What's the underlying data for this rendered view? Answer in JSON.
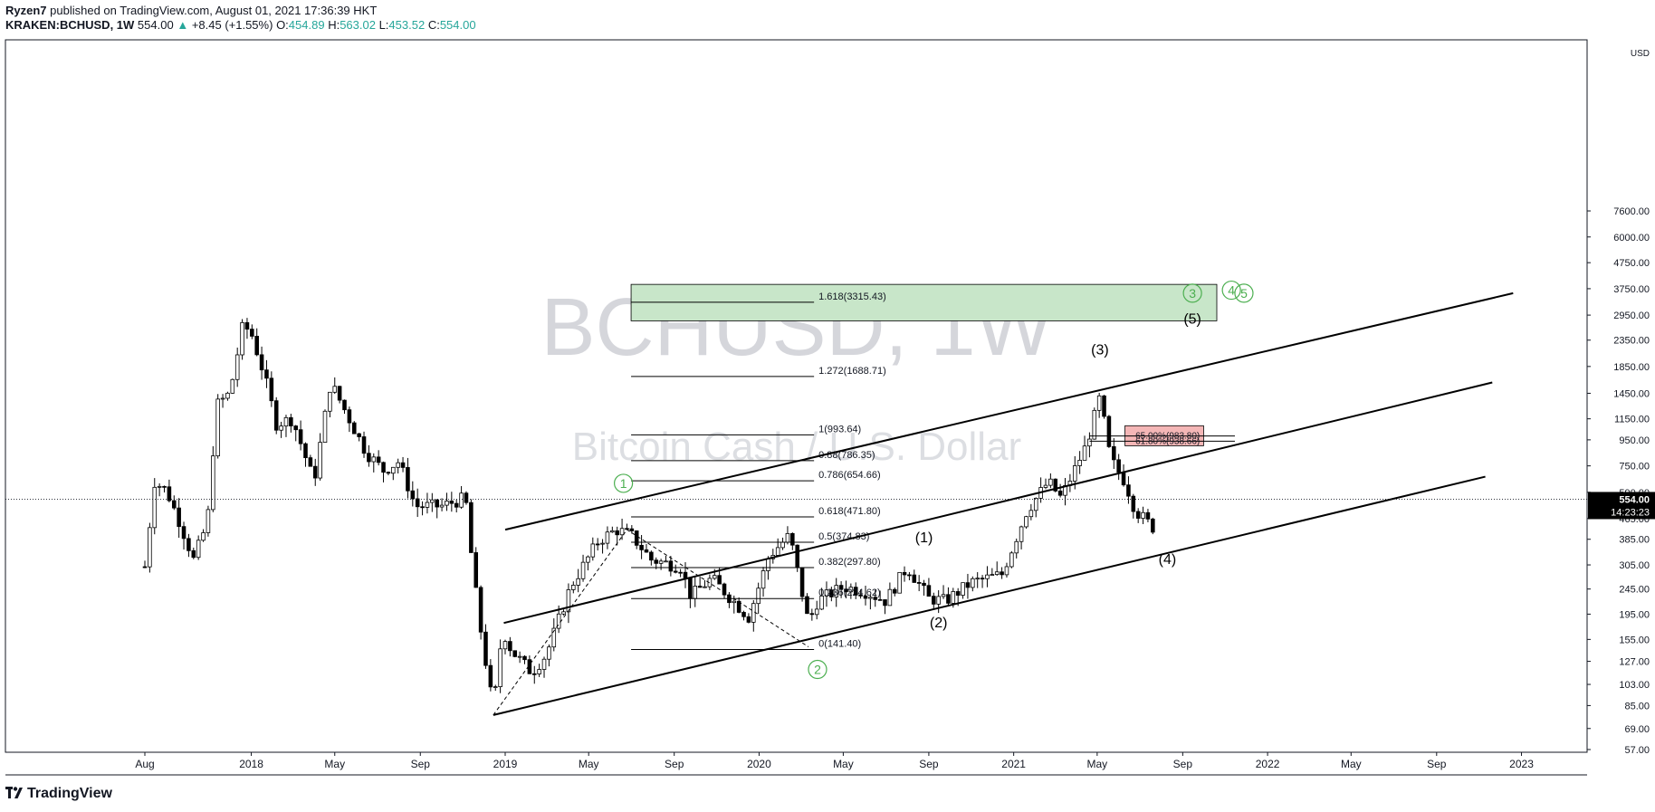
{
  "header": {
    "publisher": "Ryzen7",
    "published_text": "published on TradingView.com, August 01, 2021 17:36:39 HKT",
    "symbol": "KRAKEN:BCHUSD",
    "interval": "1W",
    "last": "554.00",
    "change": "+8.45 (+1.55%)",
    "ohlc": [
      {
        "label": "O:",
        "value": "454.89"
      },
      {
        "label": "H:",
        "value": "563.02"
      },
      {
        "label": "L:",
        "value": "453.52"
      },
      {
        "label": "C:",
        "value": "554.00"
      }
    ]
  },
  "watermark": {
    "main": "BCHUSD, 1W",
    "sub": "Bitcoin Cash / U.S. Dollar"
  },
  "footer": {
    "brand": "TradingView"
  },
  "colors": {
    "up": "#26a69a",
    "wave_green": "#4caf50",
    "target_fill": "#c8e6c9",
    "resistance_fill": "#f4b6b6",
    "line": "#000000",
    "axis_text": "#131722"
  },
  "icons": [
    "tradingview-logo-icon",
    "change-up-triangle-icon"
  ],
  "chart_data": {
    "type": "candlestick",
    "scale": "log",
    "currency": "USD",
    "last_price": "554.00",
    "countdown": "14:23:23",
    "y_ticks": [
      57,
      69,
      85,
      103,
      127,
      155,
      195,
      245,
      305,
      385,
      465,
      590,
      750,
      950,
      1150,
      1450,
      1850,
      2350,
      2950,
      3750,
      4750,
      6000,
      7600
    ],
    "y_tick_labels": [
      "57.00",
      "69.00",
      "85.00",
      "103.00",
      "127.00",
      "155.00",
      "195.00",
      "245.00",
      "305.00",
      "385.00",
      "465.00",
      "590.00",
      "750.00",
      "950.00",
      "1150.00",
      "1450.00",
      "1850.00",
      "2350.00",
      "2950.00",
      "3750.00",
      "4750.00",
      "6000.00",
      "7600.00"
    ],
    "x_ticks": [
      {
        "label": "Aug",
        "date": "2017-08"
      },
      {
        "label": "2018",
        "date": "2018-01"
      },
      {
        "label": "May",
        "date": "2018-05"
      },
      {
        "label": "Sep",
        "date": "2018-09"
      },
      {
        "label": "2019",
        "date": "2019-01"
      },
      {
        "label": "May",
        "date": "2019-05"
      },
      {
        "label": "Sep",
        "date": "2019-09"
      },
      {
        "label": "2020",
        "date": "2020-01"
      },
      {
        "label": "May",
        "date": "2020-05"
      },
      {
        "label": "Sep",
        "date": "2020-09"
      },
      {
        "label": "2021",
        "date": "2021-01"
      },
      {
        "label": "May",
        "date": "2021-05"
      },
      {
        "label": "Sep",
        "date": "2021-09"
      },
      {
        "label": "2022",
        "date": "2022-01"
      },
      {
        "label": "May",
        "date": "2022-05"
      },
      {
        "label": "Sep",
        "date": "2022-09"
      },
      {
        "label": "2023",
        "date": "2023-01"
      }
    ],
    "price_path": [
      [
        "2017-08-01",
        300
      ],
      [
        "2017-08-15",
        650
      ],
      [
        "2017-09-01",
        600
      ],
      [
        "2017-09-20",
        450
      ],
      [
        "2017-10-10",
        320
      ],
      [
        "2017-10-30",
        450
      ],
      [
        "2017-11-12",
        1300
      ],
      [
        "2017-12-01",
        1450
      ],
      [
        "2017-12-20",
        2700
      ],
      [
        "2018-01-01",
        2500
      ],
      [
        "2018-01-20",
        1700
      ],
      [
        "2018-02-06",
        1100
      ],
      [
        "2018-03-01",
        1150
      ],
      [
        "2018-04-01",
        650
      ],
      [
        "2018-04-25",
        1600
      ],
      [
        "2018-05-15",
        1250
      ],
      [
        "2018-06-15",
        850
      ],
      [
        "2018-07-10",
        720
      ],
      [
        "2018-08-01",
        780
      ],
      [
        "2018-08-25",
        520
      ],
      [
        "2018-10-01",
        520
      ],
      [
        "2018-11-05",
        560
      ],
      [
        "2018-11-15",
        300
      ],
      [
        "2018-11-28",
        160
      ],
      [
        "2018-12-15",
        82
      ],
      [
        "2018-12-28",
        170
      ],
      [
        "2019-01-10",
        140
      ],
      [
        "2019-02-08",
        115
      ],
      [
        "2019-03-01",
        135
      ],
      [
        "2019-04-05",
        250
      ],
      [
        "2019-05-15",
        380
      ],
      [
        "2019-06-10",
        420
      ],
      [
        "2019-07-01",
        400
      ],
      [
        "2019-07-30",
        320
      ],
      [
        "2019-09-10",
        300
      ],
      [
        "2019-09-25",
        230
      ],
      [
        "2019-10-25",
        270
      ],
      [
        "2019-12-17",
        190
      ],
      [
        "2020-01-15",
        330
      ],
      [
        "2020-02-14",
        400
      ],
      [
        "2020-03-12",
        180
      ],
      [
        "2020-03-25",
        220
      ],
      [
        "2020-05-01",
        250
      ],
      [
        "2020-06-01",
        240
      ],
      [
        "2020-07-01",
        220
      ],
      [
        "2020-08-01",
        300
      ],
      [
        "2020-09-01",
        225
      ],
      [
        "2020-09-25",
        220
      ],
      [
        "2020-11-01",
        260
      ],
      [
        "2020-12-15",
        280
      ],
      [
        "2021-01-20",
        500
      ],
      [
        "2021-02-20",
        650
      ],
      [
        "2021-03-10",
        560
      ],
      [
        "2021-04-15",
        900
      ],
      [
        "2021-05-05",
        1400
      ],
      [
        "2021-05-20",
        800
      ],
      [
        "2021-06-10",
        650
      ],
      [
        "2021-06-25",
        500
      ],
      [
        "2021-07-20",
        430
      ],
      [
        "2021-07-26",
        554
      ]
    ],
    "fibonacci": [
      {
        "label": "1.618(3315.43)",
        "price": 3315.43
      },
      {
        "label": "1.272(1688.71)",
        "price": 1688.71
      },
      {
        "label": "1(993.64)",
        "price": 993.64
      },
      {
        "label": "0.88(786.35)",
        "price": 786.35
      },
      {
        "label": "0.786(654.66)",
        "price": 654.66
      },
      {
        "label": "0.618(471.80)",
        "price": 471.8
      },
      {
        "label": "0.5(374.83)",
        "price": 374.83
      },
      {
        "label": "0.382(297.80)",
        "price": 297.8
      },
      {
        "label": "0.236(224.62)",
        "price": 224.62
      },
      {
        "label": "0(141.40)",
        "price": 141.4
      }
    ],
    "fib_range": {
      "start": "2019-07-01",
      "end": "2020-03-20"
    },
    "target_box": {
      "from": "2019-07-01",
      "to": "2021-10-20",
      "low": 2800,
      "high": 3900
    },
    "resistance_box": {
      "from": "2021-06-10",
      "to": "2021-10-01",
      "low": 900,
      "high": 1080
    },
    "resistance_labels": [
      {
        "label": "65.00%(983.80)",
        "price": 983.8
      },
      {
        "label": "61.80%(938.66)",
        "price": 938.66
      }
    ],
    "channel_lines": [
      {
        "start": [
          "2019-01-01",
          420
        ],
        "end": [
          "2022-12-20",
          3600
        ]
      },
      {
        "start": [
          "2018-12-30",
          180
        ],
        "end": [
          "2022-11-20",
          1600
        ]
      },
      {
        "start": [
          "2018-12-15",
          78
        ],
        "end": [
          "2022-11-10",
          680
        ]
      }
    ],
    "abc_path": [
      [
        "2018-12-15",
        78
      ],
      [
        "2019-06-25",
        420
      ],
      [
        "2020-03-12",
        145
      ]
    ],
    "wave_labels": [
      {
        "text": "1",
        "date": "2019-06-20",
        "price": 640,
        "style": "circle"
      },
      {
        "text": "2",
        "date": "2020-03-25",
        "price": 118,
        "style": "circle"
      },
      {
        "text": "3",
        "date": "2021-09-15",
        "price": 3600,
        "style": "circle"
      },
      {
        "text": "4",
        "date": "2021-11-10",
        "price": 3700,
        "style": "circle"
      },
      {
        "text": "5",
        "date": "2021-11-28",
        "price": 3600,
        "style": "circle"
      },
      {
        "text": "(1)",
        "date": "2020-08-25",
        "price": 390,
        "style": "paren"
      },
      {
        "text": "(2)",
        "date": "2020-09-15",
        "price": 180,
        "style": "paren"
      },
      {
        "text": "(3)",
        "date": "2021-05-05",
        "price": 2150,
        "style": "paren"
      },
      {
        "text": "(4)",
        "date": "2021-08-10",
        "price": 320,
        "style": "paren"
      },
      {
        "text": "(5)",
        "date": "2021-09-15",
        "price": 2850,
        "style": "paren"
      }
    ]
  }
}
